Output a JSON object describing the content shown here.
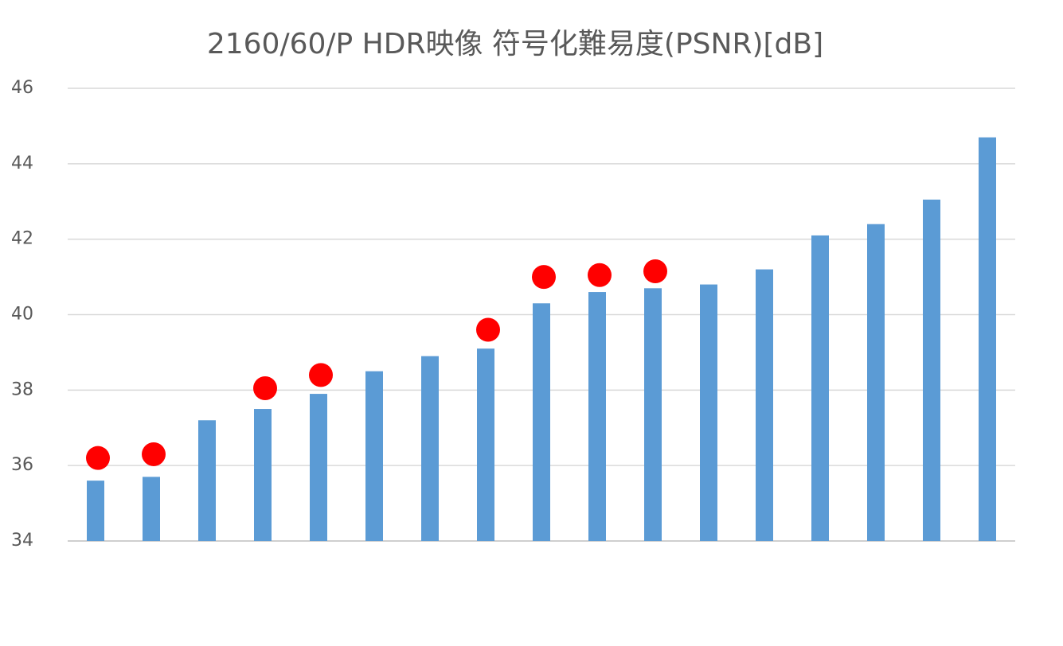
{
  "chart_data": {
    "type": "bar",
    "title": "2160/60/P HDR映像 符号化難易度(PSNR)[dB]",
    "categories": [
      null,
      null,
      null,
      null,
      null,
      null,
      null,
      null,
      null,
      null,
      null,
      null,
      null,
      null,
      null,
      null,
      null
    ],
    "series": [
      {
        "type": "bar",
        "color": "#5b9bd5",
        "values": [
          35.6,
          35.7,
          37.2,
          37.5,
          37.9,
          38.5,
          38.9,
          39.1,
          40.3,
          40.6,
          40.7,
          40.8,
          41.2,
          42.1,
          42.4,
          43.05,
          44.7
        ]
      },
      {
        "type": "scatter",
        "color": "#ff0000",
        "values": [
          36.2,
          36.3,
          null,
          38.05,
          38.4,
          null,
          null,
          39.6,
          41.0,
          41.05,
          41.15,
          null,
          null,
          null,
          null,
          null,
          null
        ]
      }
    ],
    "ylim": [
      34,
      46
    ],
    "yticks": [
      34,
      36,
      38,
      40,
      42,
      44,
      46
    ],
    "grid": true
  }
}
